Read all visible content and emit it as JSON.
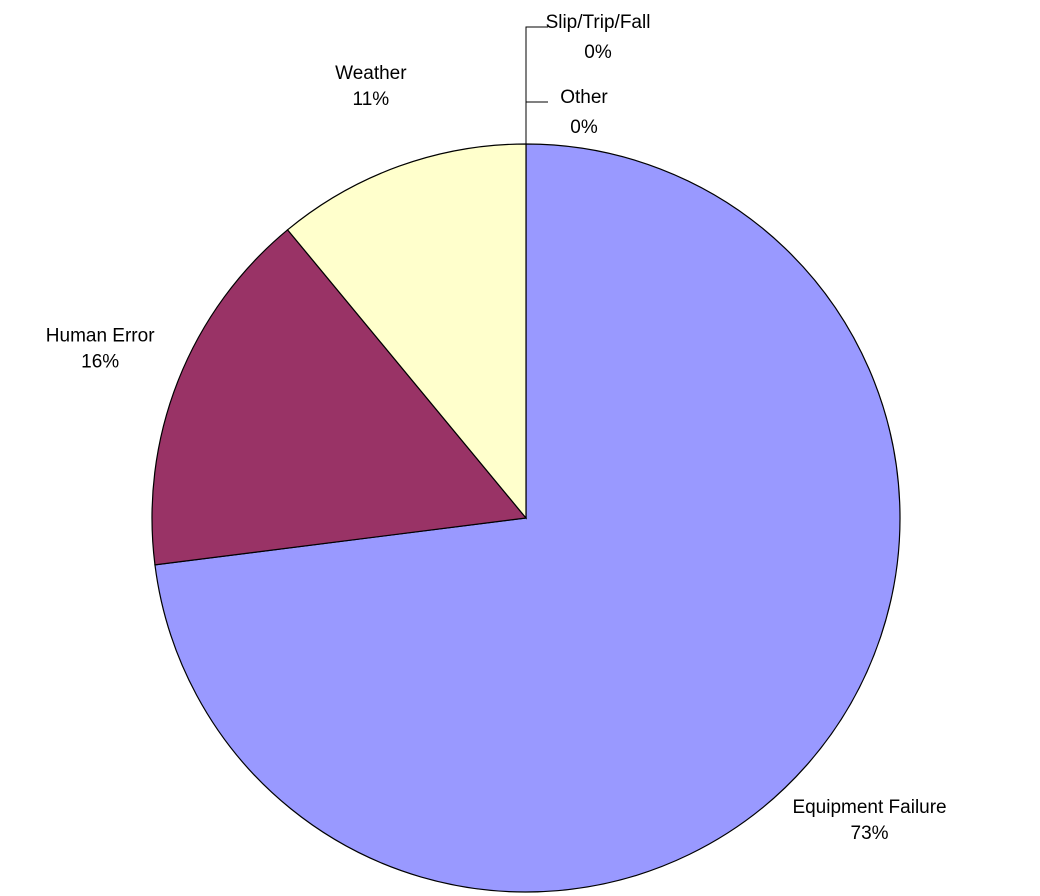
{
  "chart_data": {
    "type": "pie",
    "categories": [
      "Equipment Failure",
      "Human Error",
      "Weather",
      "Slip/Trip/Fall",
      "Other"
    ],
    "values": [
      73,
      16,
      11,
      0,
      0
    ],
    "value_labels": [
      "73%",
      "16%",
      "11%",
      "0%",
      "0%"
    ],
    "colors": [
      "#9999ff",
      "#993366",
      "#ffffcc",
      "#ccffff",
      "#660066"
    ]
  }
}
